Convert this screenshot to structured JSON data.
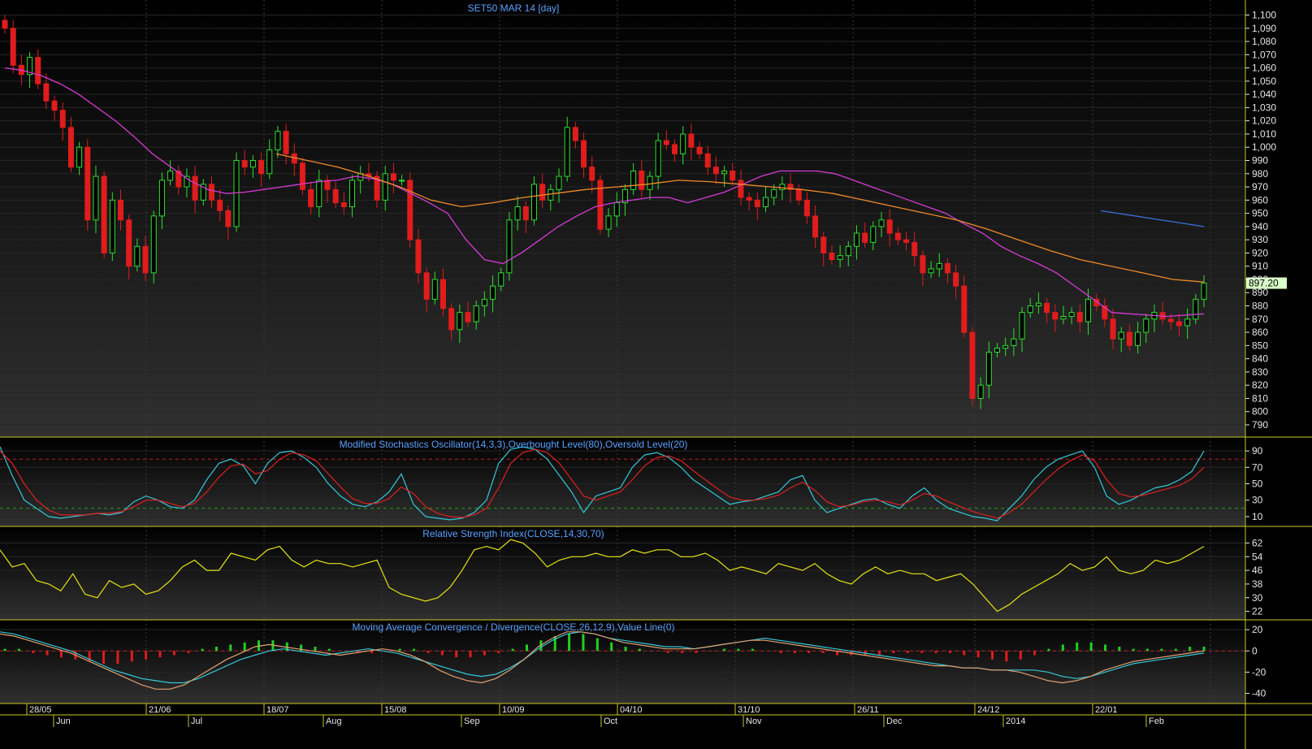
{
  "chart_data": [
    {
      "type": "candlestick",
      "title": "SET50 MAR 14   [day]",
      "ylim": [
        782,
        1104
      ],
      "y_ticks": [
        "1,100",
        "1,090",
        "1,080",
        "1,070",
        "1,060",
        "1,050",
        "1,040",
        "1,030",
        "1,020",
        "1,010",
        "1,000",
        "990",
        "980",
        "970",
        "960",
        "950",
        "940",
        "930",
        "920",
        "910",
        "900",
        "890",
        "880",
        "870",
        "860",
        "850",
        "840",
        "830",
        "820",
        "810",
        "800",
        "790"
      ],
      "last_value_label": "897.20",
      "grid": true,
      "series": [
        {
          "kind": "candles",
          "values": [
            1090,
            1062,
            1055,
            1068,
            1048,
            1035,
            1028,
            1015,
            985,
            1000,
            945,
            978,
            920,
            960,
            945,
            910,
            925,
            905,
            948,
            975,
            982,
            970,
            978,
            960,
            972,
            960,
            952,
            940,
            990,
            985,
            990,
            980,
            998,
            1012,
            995,
            988,
            968,
            955,
            975,
            968,
            958,
            955,
            975,
            980,
            978,
            960,
            980,
            975,
            975,
            930,
            905,
            885,
            900,
            878,
            862,
            875,
            868,
            880,
            885,
            895,
            905,
            945,
            955,
            945,
            972,
            960,
            968,
            978,
            1015,
            1005,
            985,
            975,
            938,
            948,
            958,
            968,
            982,
            968,
            978,
            1005,
            1002,
            995,
            1010,
            1000,
            995,
            985,
            980,
            982,
            975,
            962,
            960,
            955,
            962,
            968,
            972,
            968,
            960,
            948,
            932,
            920,
            915,
            918,
            925,
            935,
            928,
            940,
            945,
            935,
            930,
            928,
            918,
            905,
            908,
            912,
            905,
            895,
            860,
            810,
            820,
            845,
            848,
            850,
            855,
            875,
            880,
            882,
            875,
            870,
            872,
            875,
            868,
            885,
            880,
            870,
            855,
            860,
            850,
            860,
            870,
            875,
            870,
            868,
            865,
            870,
            885,
            897.2
          ]
        },
        {
          "kind": "ma",
          "name": "",
          "color": "#d63bd6",
          "values": [
            1060,
            1058,
            1054,
            1048,
            1040,
            1030,
            1020,
            1008,
            995,
            985,
            975,
            968,
            965,
            966,
            968,
            970,
            972,
            974,
            975,
            978,
            976,
            972,
            965,
            958,
            950,
            930,
            915,
            912,
            920,
            930,
            940,
            948,
            955,
            958,
            960,
            962,
            962,
            958,
            962,
            966,
            972,
            978,
            982,
            982,
            982,
            980,
            975,
            970,
            965,
            960,
            955,
            950,
            942,
            935,
            925,
            918,
            912,
            905,
            895,
            885,
            875,
            874,
            873,
            872,
            873,
            874
          ]
        },
        {
          "kind": "ma",
          "name": "",
          "color": "#f08a2a",
          "values": [
            995,
            990,
            985,
            978,
            970,
            960,
            955,
            958,
            962,
            965,
            968,
            970,
            972,
            975,
            974,
            972,
            970,
            968,
            965,
            960,
            955,
            950,
            945,
            938,
            930,
            922,
            915,
            910,
            905,
            900,
            898
          ]
        },
        {
          "kind": "ma",
          "name": "",
          "color": "#3a6fdc",
          "values": [
            952,
            940
          ]
        }
      ],
      "x_date_labels": [
        "28/05",
        "21/06",
        "18/07",
        "15/08",
        "10/09",
        "04/10",
        "31/10",
        "26/11",
        "24/12",
        "22/01"
      ],
      "x_month_labels": [
        "Jun",
        "Jul",
        "Aug",
        "Sep",
        "Oct",
        "Nov",
        "Dec",
        "2014",
        "Feb"
      ]
    },
    {
      "type": "line",
      "title": "Modified Stochastics Oscillator(14,3,3),Overbought Level(80),Oversold Level(20)",
      "ylim": [
        0,
        100
      ],
      "y_ticks": [
        "90",
        "70",
        "50",
        "30",
        "10"
      ],
      "levels": [
        80,
        20
      ],
      "series": [
        {
          "name": "",
          "color": "#34c8d8",
          "values": [
            95,
            60,
            30,
            20,
            10,
            8,
            10,
            12,
            14,
            12,
            15,
            28,
            35,
            30,
            22,
            20,
            30,
            55,
            75,
            80,
            72,
            50,
            75,
            88,
            90,
            82,
            70,
            50,
            35,
            25,
            22,
            28,
            40,
            62,
            25,
            10,
            8,
            6,
            8,
            15,
            30,
            75,
            92,
            95,
            92,
            80,
            60,
            40,
            15,
            35,
            40,
            45,
            70,
            85,
            88,
            82,
            70,
            55,
            45,
            35,
            25,
            28,
            30,
            35,
            40,
            55,
            60,
            30,
            15,
            20,
            25,
            30,
            32,
            25,
            20,
            35,
            45,
            30,
            20,
            15,
            10,
            8,
            5,
            20,
            35,
            55,
            70,
            80,
            85,
            90,
            70,
            35,
            25,
            30,
            38,
            45,
            48,
            55,
            65,
            90
          ]
        },
        {
          "name": "",
          "color": "#e02020",
          "values": [
            90,
            75,
            50,
            30,
            18,
            12,
            12,
            12,
            14,
            14,
            16,
            22,
            30,
            30,
            26,
            22,
            26,
            40,
            58,
            72,
            74,
            62,
            66,
            80,
            88,
            85,
            78,
            62,
            46,
            32,
            26,
            26,
            32,
            46,
            38,
            22,
            14,
            10,
            9,
            12,
            20,
            45,
            75,
            88,
            92,
            88,
            75,
            55,
            35,
            30,
            35,
            40,
            55,
            72,
            82,
            84,
            78,
            66,
            55,
            44,
            34,
            30,
            30,
            32,
            36,
            45,
            52,
            42,
            28,
            22,
            24,
            28,
            30,
            28,
            24,
            30,
            38,
            35,
            28,
            22,
            16,
            12,
            8,
            15,
            25,
            40,
            55,
            68,
            78,
            85,
            78,
            55,
            38,
            34,
            36,
            40,
            44,
            48,
            56,
            70
          ]
        }
      ]
    },
    {
      "type": "line",
      "title": "Relative Strength Index(CLOSE,14,30,70)",
      "ylim": [
        18,
        66
      ],
      "y_ticks": [
        "62",
        "54",
        "46",
        "38",
        "30",
        "22"
      ],
      "series": [
        {
          "name": "",
          "color": "#e4e414",
          "values": [
            58,
            48,
            50,
            40,
            38,
            34,
            44,
            32,
            30,
            40,
            36,
            38,
            32,
            34,
            40,
            48,
            52,
            46,
            46,
            56,
            54,
            52,
            58,
            60,
            52,
            48,
            52,
            50,
            50,
            48,
            50,
            52,
            36,
            32,
            30,
            28,
            30,
            36,
            46,
            58,
            60,
            58,
            64,
            62,
            56,
            48,
            52,
            54,
            54,
            56,
            54,
            54,
            58,
            56,
            58,
            58,
            54,
            54,
            56,
            52,
            46,
            48,
            46,
            44,
            50,
            48,
            46,
            50,
            44,
            40,
            38,
            44,
            48,
            44,
            46,
            44,
            44,
            40,
            42,
            44,
            38,
            30,
            22,
            26,
            32,
            36,
            40,
            44,
            50,
            46,
            48,
            54,
            46,
            44,
            46,
            52,
            50,
            52,
            56,
            60
          ]
        }
      ]
    },
    {
      "type": "bar",
      "title": "Moving Average Convergence / Divergence(CLOSE,26,12,9),Value Line(0)",
      "ylim": [
        -48,
        27
      ],
      "y_ticks": [
        "20",
        "0",
        "-20",
        "-40"
      ],
      "series": [
        {
          "name": "",
          "color": "#34c8d8",
          "values": [
            18,
            16,
            12,
            8,
            4,
            0,
            -6,
            -12,
            -18,
            -22,
            -26,
            -28,
            -30,
            -30,
            -26,
            -20,
            -14,
            -8,
            -4,
            0,
            2,
            0,
            -2,
            -4,
            -2,
            0,
            2,
            0,
            -2,
            -6,
            -10,
            -14,
            -18,
            -22,
            -24,
            -22,
            -16,
            -8,
            2,
            10,
            16,
            18,
            16,
            12,
            10,
            8,
            6,
            4,
            4,
            2,
            4,
            6,
            8,
            10,
            12,
            10,
            8,
            6,
            4,
            2,
            0,
            -2,
            -4,
            -6,
            -8,
            -10,
            -12,
            -14,
            -16,
            -16,
            -18,
            -18,
            -18,
            -18,
            -20,
            -24,
            -26,
            -24,
            -20,
            -16,
            -12,
            -10,
            -8,
            -6,
            -4,
            -2
          ]
        },
        {
          "name": "",
          "color": "#e0a070",
          "values": [
            16,
            14,
            10,
            6,
            2,
            -2,
            -8,
            -14,
            -20,
            -26,
            -32,
            -36,
            -36,
            -32,
            -24,
            -16,
            -8,
            -2,
            4,
            6,
            4,
            2,
            0,
            -2,
            -4,
            -2,
            0,
            2,
            0,
            -4,
            -10,
            -18,
            -24,
            -28,
            -30,
            -26,
            -18,
            -8,
            4,
            12,
            18,
            18,
            16,
            12,
            8,
            6,
            4,
            2,
            2,
            2,
            4,
            6,
            8,
            10,
            10,
            8,
            6,
            4,
            2,
            0,
            -2,
            -4,
            -6,
            -8,
            -10,
            -12,
            -14,
            -14,
            -16,
            -16,
            -18,
            -18,
            -20,
            -24,
            -28,
            -30,
            -28,
            -24,
            -18,
            -14,
            -10,
            -8,
            -6,
            -4,
            -2,
            0
          ]
        },
        {
          "name": "",
          "color": "#e02020",
          "values": [
            2,
            2,
            -2,
            -4,
            -6,
            -8,
            -10,
            -12,
            -12,
            -10,
            -8,
            -6,
            -4,
            -2,
            2,
            4,
            6,
            8,
            10,
            10,
            8,
            6,
            4,
            2,
            0,
            -2,
            -2,
            0,
            2,
            2,
            -2,
            -4,
            -6,
            -6,
            -4,
            -2,
            2,
            6,
            10,
            14,
            16,
            16,
            12,
            8,
            4,
            2,
            0,
            -2,
            -2,
            -2,
            0,
            2,
            2,
            2,
            0,
            -2,
            -2,
            -2,
            -2,
            -4,
            -4,
            -4,
            -4,
            -2,
            -2,
            -2,
            -2,
            -2,
            -4,
            -6,
            -8,
            -10,
            -8,
            -4,
            2,
            6,
            8,
            8,
            6,
            4,
            2,
            2,
            2,
            2,
            4,
            4
          ]
        }
      ]
    }
  ]
}
